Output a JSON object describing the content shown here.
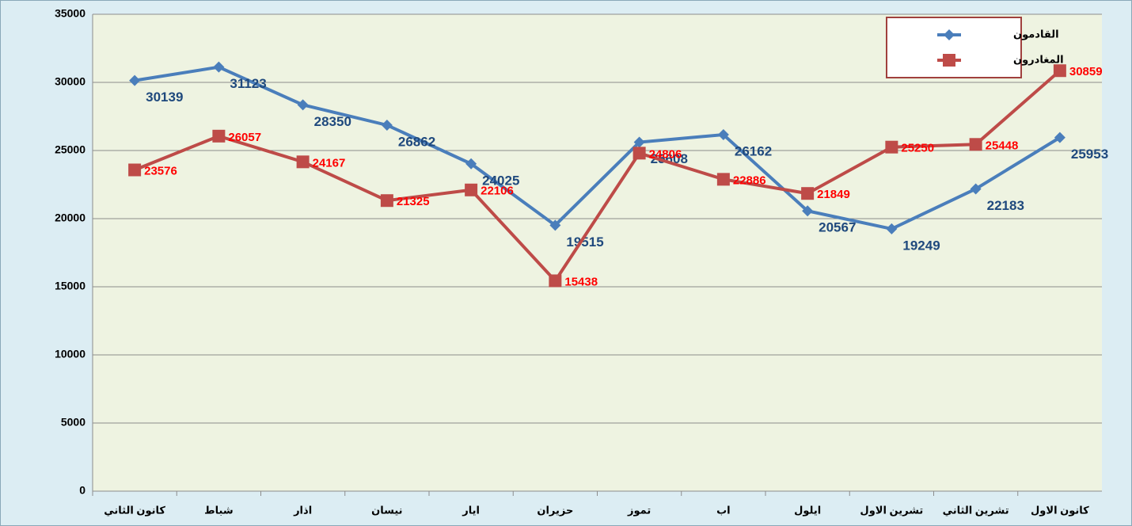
{
  "chart_data": {
    "type": "line",
    "categories": [
      "كانون الثاني",
      "شباط",
      "اذار",
      "نيسان",
      "ايار",
      "حزيران",
      "تموز",
      "اب",
      "ايلول",
      "تشرين الاول",
      "تشرين الثاني",
      "كانون الاول"
    ],
    "series": [
      {
        "name": "القادمون",
        "color": "#4a7ebb",
        "values": [
          30139,
          31123,
          28350,
          26862,
          24025,
          19515,
          25608,
          26162,
          20567,
          19249,
          22183,
          25953
        ]
      },
      {
        "name": "المغادرون",
        "color": "#be4b48",
        "values": [
          23576,
          26057,
          24167,
          21325,
          22106,
          15438,
          24806,
          22886,
          21849,
          25250,
          25448,
          30859
        ]
      }
    ],
    "ylim": [
      0,
      35000
    ],
    "yticks": [
      0,
      5000,
      10000,
      15000,
      20000,
      25000,
      30000,
      35000
    ],
    "grid": true,
    "legend": "upper right"
  }
}
